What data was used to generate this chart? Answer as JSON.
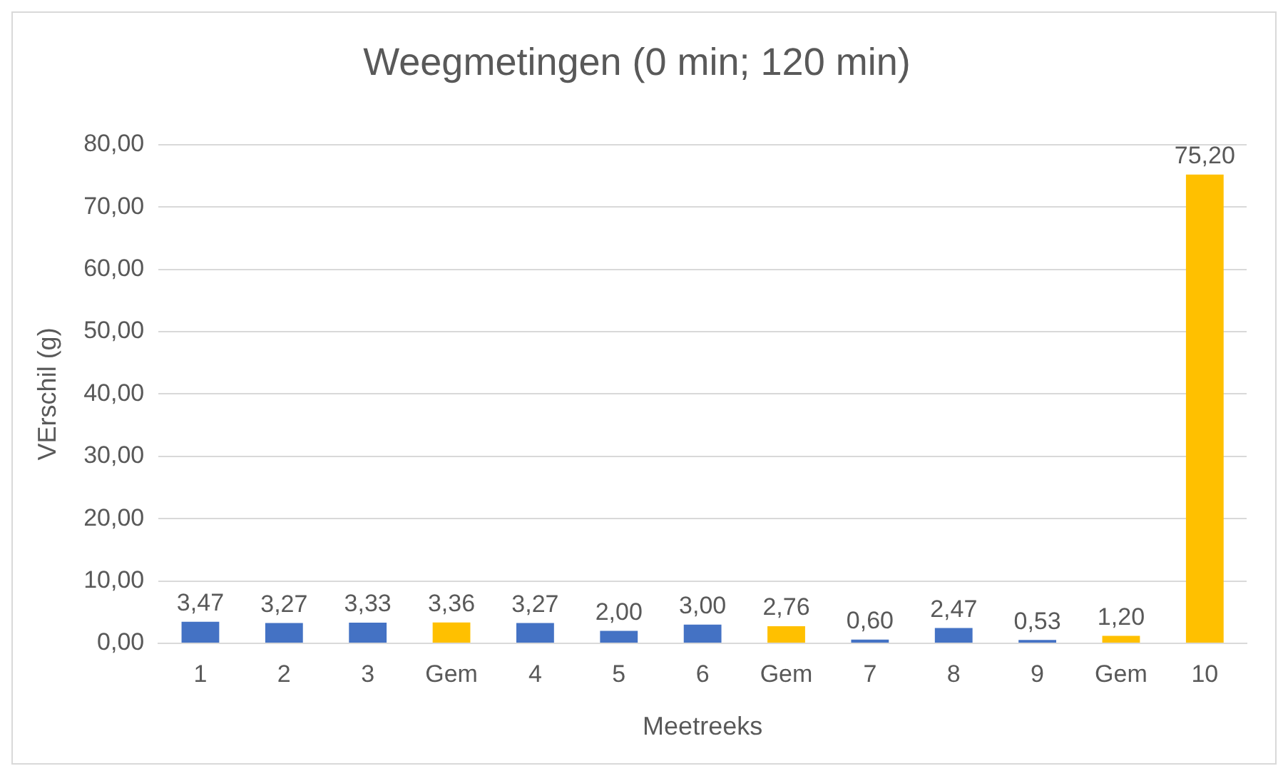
{
  "chart_data": {
    "type": "bar",
    "title": "Weegmetingen (0 min; 120 min)",
    "xlabel": "Meetreeks",
    "ylabel": "VErschil (g)",
    "categories": [
      "1",
      "2",
      "3",
      "Gem",
      "4",
      "5",
      "6",
      "Gem",
      "7",
      "8",
      "9",
      "Gem",
      "10"
    ],
    "values": [
      3.47,
      3.27,
      3.33,
      3.36,
      3.27,
      2.0,
      3.0,
      2.76,
      0.6,
      2.47,
      0.53,
      1.2,
      75.2
    ],
    "colors": [
      "#4472c4",
      "#4472c4",
      "#4472c4",
      "#ffc000",
      "#4472c4",
      "#4472c4",
      "#4472c4",
      "#ffc000",
      "#4472c4",
      "#4472c4",
      "#4472c4",
      "#ffc000",
      "#ffc000"
    ],
    "value_labels": [
      "3,47",
      "3,27",
      "3,33",
      "3,36",
      "3,27",
      "2,00",
      "3,00",
      "2,76",
      "0,60",
      "2,47",
      "0,53",
      "1,20",
      "75,20"
    ],
    "ylim": [
      0,
      80
    ],
    "yticks": [
      {
        "value": 0,
        "label": "0,00"
      },
      {
        "value": 10,
        "label": "10,00"
      },
      {
        "value": 20,
        "label": "20,00"
      },
      {
        "value": 30,
        "label": "30,00"
      },
      {
        "value": 40,
        "label": "40,00"
      },
      {
        "value": 50,
        "label": "50,00"
      },
      {
        "value": 60,
        "label": "60,00"
      },
      {
        "value": 70,
        "label": "70,00"
      },
      {
        "value": 80,
        "label": "80,00"
      }
    ],
    "grid": "y",
    "legend": false
  }
}
